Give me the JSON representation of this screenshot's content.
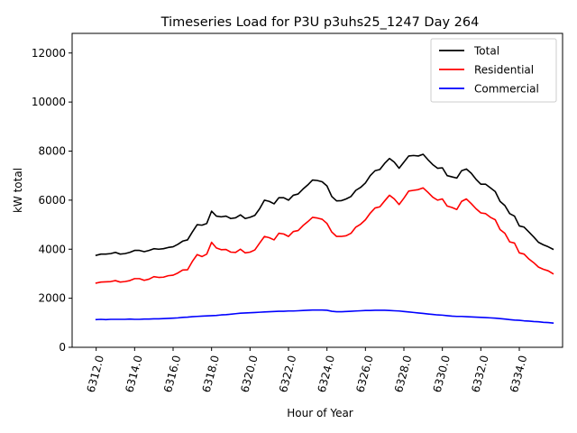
{
  "chart_data": {
    "type": "line",
    "title": "Timeseries Load for P3U p3uhs25_1247  Day 264",
    "xlabel": "Hour of Year",
    "ylabel": "kW total",
    "xlim": [
      6310.75,
      6336.25
    ],
    "ylim": [
      0,
      12800
    ],
    "xticks": [
      6312,
      6314,
      6316,
      6318,
      6320,
      6322,
      6324,
      6326,
      6328,
      6330,
      6332,
      6334
    ],
    "xtick_labels": [
      "6312.0",
      "6314.0",
      "6316.0",
      "6318.0",
      "6320.0",
      "6322.0",
      "6324.0",
      "6326.0",
      "6328.0",
      "6330.0",
      "6332.0",
      "6334.0"
    ],
    "yticks": [
      0,
      2000,
      4000,
      6000,
      8000,
      10000,
      12000
    ],
    "ytick_labels": [
      "0",
      "2000",
      "4000",
      "6000",
      "8000",
      "10000",
      "12000"
    ],
    "grid": false,
    "legend_position": "top-right",
    "x_start": 6312.0,
    "x_step": 0.25,
    "series": [
      {
        "name": "Total",
        "color": "#000000",
        "values": [
          3750,
          3800,
          3800,
          3820,
          3870,
          3800,
          3820,
          3870,
          3950,
          3950,
          3900,
          3950,
          4020,
          4000,
          4020,
          4070,
          4100,
          4200,
          4330,
          4380,
          4700,
          5000,
          4980,
          5050,
          5550,
          5350,
          5320,
          5350,
          5250,
          5280,
          5400,
          5250,
          5300,
          5380,
          5650,
          6000,
          5950,
          5850,
          6100,
          6100,
          6000,
          6200,
          6250,
          6450,
          6620,
          6820,
          6800,
          6750,
          6580,
          6150,
          5970,
          5980,
          6050,
          6150,
          6400,
          6520,
          6700,
          7000,
          7200,
          7250,
          7500,
          7700,
          7550,
          7300,
          7550,
          7800,
          7820,
          7800,
          7870,
          7650,
          7450,
          7300,
          7320,
          7000,
          6950,
          6900,
          7200,
          7270,
          7100,
          6850,
          6650,
          6650,
          6500,
          6350,
          5950,
          5780,
          5450,
          5350,
          4950,
          4900,
          4700,
          4500,
          4280,
          4180,
          4100,
          4000
        ]
      },
      {
        "name": "Residential",
        "color": "#ff0000",
        "values": [
          2620,
          2660,
          2670,
          2680,
          2720,
          2660,
          2680,
          2720,
          2800,
          2800,
          2730,
          2780,
          2880,
          2850,
          2860,
          2920,
          2940,
          3030,
          3150,
          3160,
          3500,
          3780,
          3700,
          3800,
          4280,
          4050,
          3980,
          3990,
          3880,
          3870,
          4000,
          3850,
          3880,
          3970,
          4250,
          4520,
          4470,
          4380,
          4650,
          4620,
          4520,
          4720,
          4760,
          4960,
          5120,
          5300,
          5270,
          5220,
          5050,
          4700,
          4520,
          4520,
          4550,
          4650,
          4900,
          5020,
          5200,
          5470,
          5680,
          5730,
          5970,
          6200,
          6050,
          5820,
          6080,
          6370,
          6400,
          6430,
          6500,
          6320,
          6120,
          6000,
          6050,
          5760,
          5700,
          5620,
          5950,
          6050,
          5860,
          5650,
          5480,
          5450,
          5300,
          5200,
          4800,
          4650,
          4300,
          4250,
          3850,
          3800,
          3600,
          3450,
          3270,
          3180,
          3120,
          3000
        ]
      },
      {
        "name": "Commercial",
        "color": "#0000ff",
        "values": [
          1130,
          1140,
          1130,
          1140,
          1140,
          1140,
          1140,
          1150,
          1140,
          1140,
          1150,
          1150,
          1160,
          1160,
          1170,
          1180,
          1190,
          1200,
          1220,
          1230,
          1250,
          1260,
          1270,
          1280,
          1290,
          1300,
          1320,
          1330,
          1350,
          1370,
          1390,
          1400,
          1410,
          1420,
          1430,
          1440,
          1450,
          1460,
          1470,
          1470,
          1480,
          1480,
          1490,
          1500,
          1510,
          1520,
          1520,
          1520,
          1510,
          1470,
          1450,
          1450,
          1460,
          1470,
          1480,
          1490,
          1500,
          1500,
          1510,
          1510,
          1510,
          1500,
          1490,
          1480,
          1460,
          1440,
          1420,
          1400,
          1380,
          1360,
          1340,
          1320,
          1310,
          1290,
          1270,
          1260,
          1260,
          1250,
          1240,
          1230,
          1220,
          1210,
          1200,
          1190,
          1170,
          1150,
          1130,
          1110,
          1100,
          1080,
          1070,
          1050,
          1040,
          1020,
          1010,
          990
        ]
      }
    ]
  }
}
